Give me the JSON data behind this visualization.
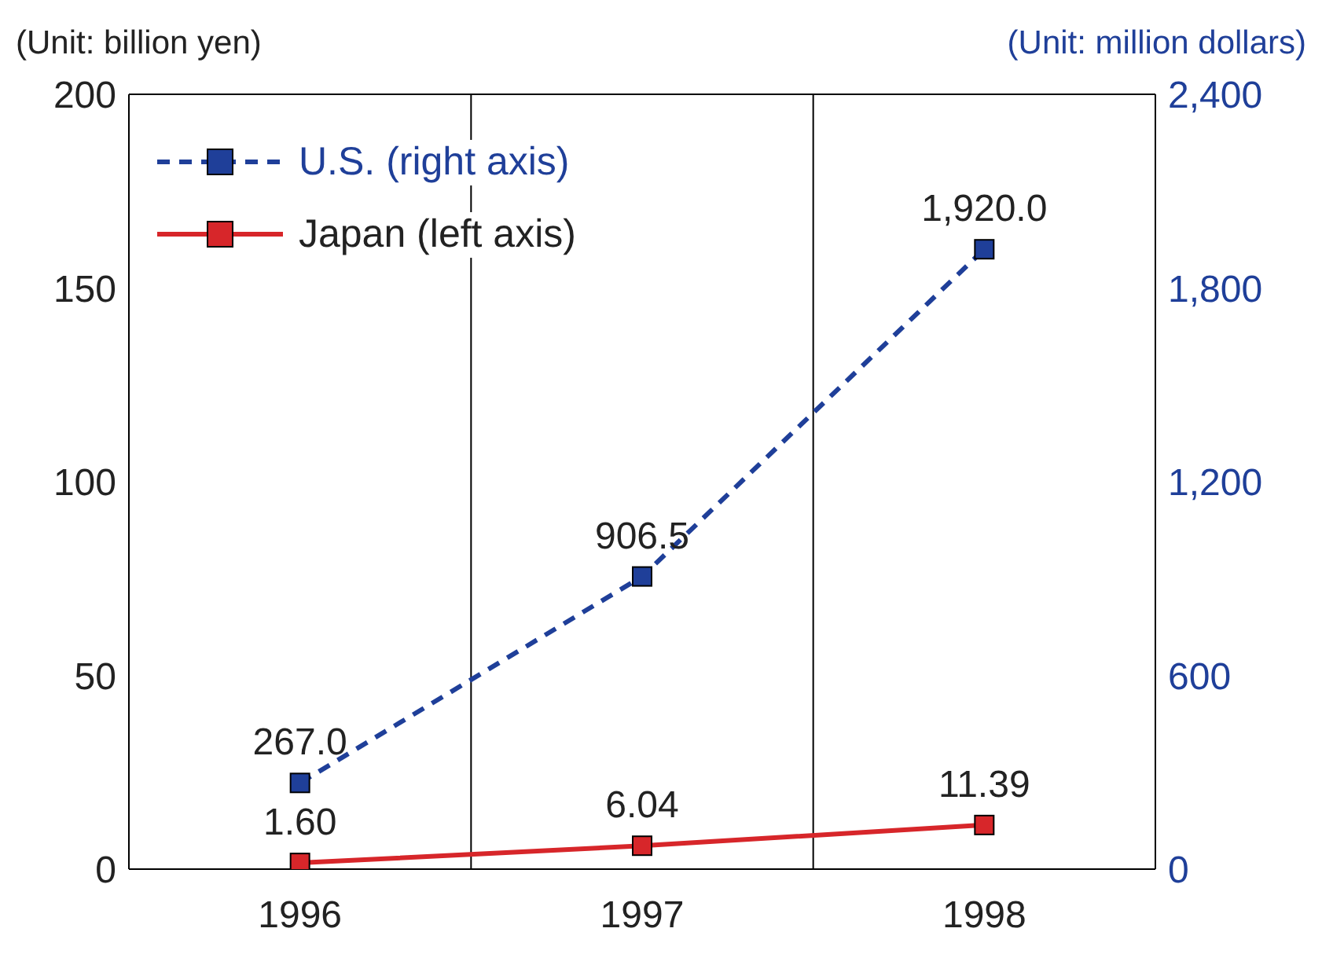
{
  "chart_data": {
    "type": "line",
    "ylabel": "(Unit: billion yen)",
    "y2label": "(Unit: million dollars)",
    "categories": [
      "1996",
      "1997",
      "1998"
    ],
    "series": [
      {
        "name": "U.S. (right axis)",
        "color": "#1f3f99",
        "values": [
          267.0,
          906.5,
          1920.0
        ],
        "axis": "y2",
        "line_style": "dashed",
        "value_labels": [
          "267.0",
          "906.5",
          "1,920.0"
        ]
      },
      {
        "name": "Japan (left axis)",
        "color": "#d7262a",
        "values": [
          1.6,
          6.04,
          11.39
        ],
        "line_style": "solid",
        "value_labels": [
          "1.60",
          "6.04",
          "11.39"
        ]
      }
    ],
    "ylim": [
      0,
      200
    ],
    "yticks": [
      0,
      50,
      100,
      150,
      200
    ],
    "y2lim": [
      0,
      2400
    ],
    "y2ticks": [
      0,
      {
        "value": 600,
        "label": "600"
      },
      {
        "value": 1200,
        "label": "1,200"
      },
      {
        "value": 1800,
        "label": "1,800"
      },
      {
        "value": 2400,
        "label": "2,400"
      }
    ],
    "grid": true,
    "legend": "top left",
    "marker": "square"
  }
}
